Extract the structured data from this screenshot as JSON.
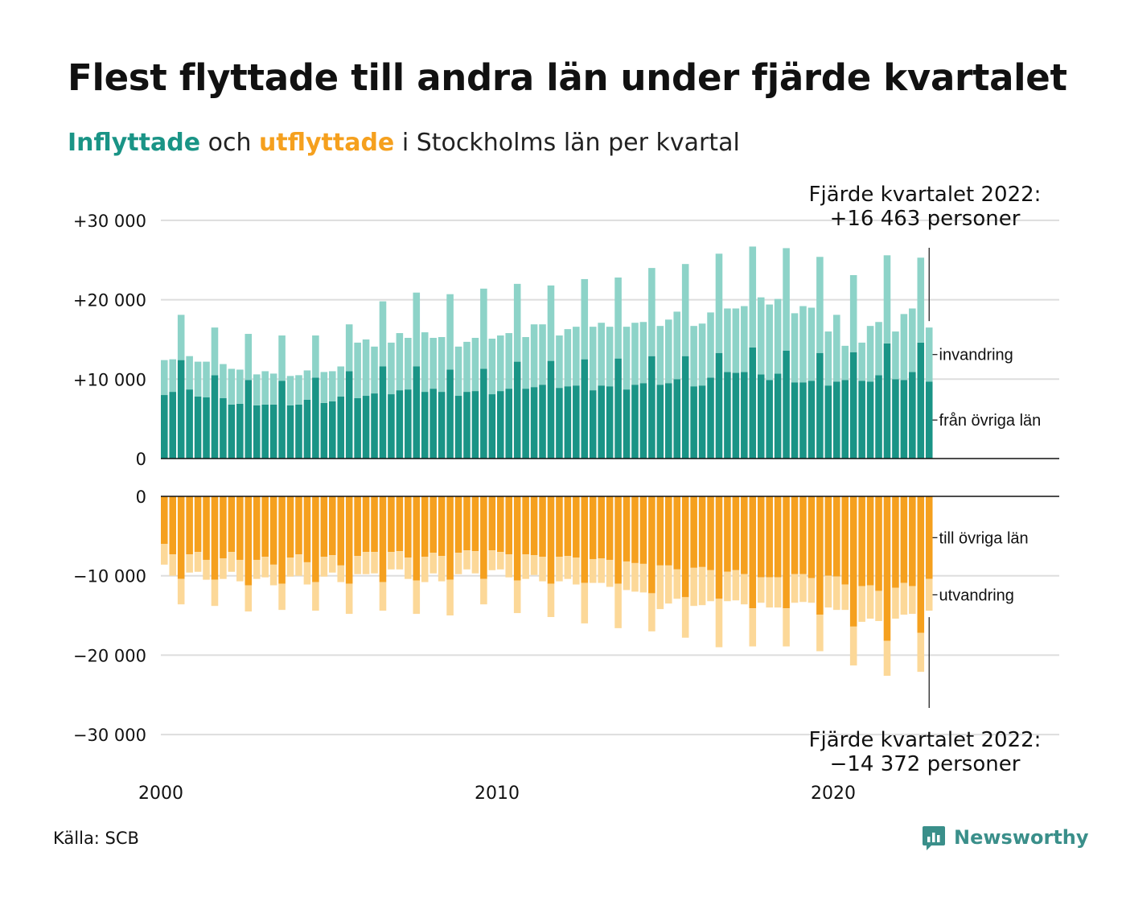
{
  "title": "Flest flyttade till andra län under fjärde kvartalet",
  "subtitle": {
    "in_word": "Inflyttade",
    "and_word": "och",
    "out_word": "utflyttade",
    "rest": "i Stockholms län per kvartal"
  },
  "source": "Källa: SCB",
  "brand": "Newsworthy",
  "colors": {
    "in_dark": "#1a9486",
    "in_light": "#8dd3c8",
    "out_dark": "#f5a01e",
    "out_light": "#fcd898",
    "grid": "#dddddd",
    "accent_in": "#1a9486",
    "accent_out": "#f5a01e",
    "logo": "#3a8f8a"
  },
  "chart_data": [
    {
      "type": "bar",
      "stacked": true,
      "panel": "inflyttade",
      "ylim": [
        0,
        30000
      ],
      "yticks": [
        {
          "value": 0,
          "label": "0"
        },
        {
          "value": 10000,
          "label": "+10 000"
        },
        {
          "value": 20000,
          "label": "+20 000"
        },
        {
          "value": 30000,
          "label": "+30 000"
        }
      ],
      "grid": true,
      "x_start_year": 2000,
      "x_end_year": 2023,
      "x_ticks": [
        {
          "value": 2000,
          "label": "2000"
        },
        {
          "value": 2010,
          "label": "2010"
        },
        {
          "value": 2020,
          "label": "2020"
        }
      ],
      "series": [
        {
          "name": "från övriga län",
          "values": [
            8000,
            8400,
            12400,
            8700,
            7800,
            7700,
            10500,
            7600,
            6800,
            6900,
            9900,
            6700,
            6800,
            6800,
            9800,
            6700,
            6800,
            7400,
            10200,
            7000,
            7200,
            7800,
            11000,
            7600,
            7900,
            8200,
            11600,
            8100,
            8600,
            8700,
            11600,
            8400,
            8800,
            8400,
            11200,
            7900,
            8400,
            8500,
            11300,
            8100,
            8500,
            8800,
            12200,
            8800,
            9000,
            9300,
            12300,
            8900,
            9100,
            9200,
            12500,
            8600,
            9200,
            9100,
            12600,
            8700,
            9300,
            9500,
            12900,
            9300,
            9500,
            10000,
            12900,
            9100,
            9200,
            10200,
            13300,
            10900,
            10800,
            10900,
            14000,
            10600,
            9900,
            10700,
            13600,
            9600,
            9600,
            9800,
            13300,
            9200,
            9700,
            9900,
            13400,
            9800,
            9700,
            10500,
            14500,
            10000,
            9900,
            10900,
            14600,
            9700
          ]
        },
        {
          "name": "invandring",
          "values": [
            4400,
            4100,
            5700,
            4200,
            4400,
            4500,
            6000,
            4300,
            4500,
            4300,
            5800,
            3900,
            4200,
            3900,
            5700,
            3700,
            3700,
            3700,
            5300,
            3900,
            3800,
            3800,
            5900,
            7000,
            7100,
            5900,
            8200,
            6500,
            7200,
            6500,
            9300,
            7500,
            6400,
            6900,
            9500,
            6200,
            6300,
            6700,
            10100,
            7000,
            7000,
            7000,
            9800,
            6500,
            7900,
            7600,
            9500,
            6600,
            7200,
            7400,
            10100,
            8000,
            7900,
            7500,
            10200,
            7900,
            7800,
            7700,
            11100,
            7400,
            8000,
            8500,
            11600,
            7600,
            7800,
            8200,
            12500,
            8000,
            8100,
            8300,
            12700,
            9700,
            9500,
            9400,
            12900,
            8700,
            9600,
            9200,
            12100,
            6800,
            8400,
            4300,
            9700,
            4800,
            7000,
            6700,
            11100,
            6000,
            8300,
            8000,
            10700,
            6800
          ]
        }
      ],
      "annotation": {
        "line1": "Fjärde kvartalet 2022:",
        "line2": "+16 463 personer",
        "quarter_index": 91,
        "value": 16463
      }
    },
    {
      "type": "bar",
      "stacked": true,
      "panel": "utflyttade",
      "ylim": [
        -30000,
        0
      ],
      "yticks": [
        {
          "value": 0,
          "label": "0"
        },
        {
          "value": -10000,
          "label": "−10 000"
        },
        {
          "value": -20000,
          "label": "−20 000"
        },
        {
          "value": -30000,
          "label": "−30 000"
        }
      ],
      "grid": true,
      "series": [
        {
          "name": "till övriga län",
          "values": [
            -6000,
            -7300,
            -10400,
            -7300,
            -7000,
            -8000,
            -10500,
            -7800,
            -7000,
            -8000,
            -11200,
            -8000,
            -7600,
            -8600,
            -11000,
            -7700,
            -7300,
            -8300,
            -10800,
            -7600,
            -7400,
            -8700,
            -11000,
            -7500,
            -7000,
            -7000,
            -10800,
            -7000,
            -6900,
            -7700,
            -10600,
            -7600,
            -7100,
            -7500,
            -10500,
            -7100,
            -6800,
            -6900,
            -10400,
            -6800,
            -7000,
            -7300,
            -10600,
            -7300,
            -7400,
            -7600,
            -11000,
            -7600,
            -7500,
            -7700,
            -10900,
            -7900,
            -7800,
            -8000,
            -11000,
            -8200,
            -8400,
            -8500,
            -12200,
            -8700,
            -8700,
            -9200,
            -12700,
            -9000,
            -8900,
            -9300,
            -12900,
            -9500,
            -9300,
            -9800,
            -14100,
            -10200,
            -10200,
            -10200,
            -14100,
            -9800,
            -9800,
            -10300,
            -14900,
            -10000,
            -10100,
            -11100,
            -16400,
            -11300,
            -11200,
            -11900,
            -18200,
            -11500,
            -10900,
            -11300,
            -17200,
            -10400
          ]
        },
        {
          "name": "utvandring",
          "values": [
            -2600,
            -2700,
            -3200,
            -2300,
            -2500,
            -2500,
            -3300,
            -2600,
            -2500,
            -2700,
            -3300,
            -2400,
            -2600,
            -2600,
            -3300,
            -2400,
            -2700,
            -2800,
            -3600,
            -2500,
            -2200,
            -2100,
            -3800,
            -2300,
            -2800,
            -2700,
            -3600,
            -2200,
            -2300,
            -2700,
            -4200,
            -3200,
            -2600,
            -3200,
            -4500,
            -2700,
            -2400,
            -2800,
            -3200,
            -2500,
            -2200,
            -2900,
            -4100,
            -3100,
            -2500,
            -3100,
            -4200,
            -3100,
            -2900,
            -3400,
            -5100,
            -3000,
            -3100,
            -3400,
            -5600,
            -3600,
            -3600,
            -3600,
            -4800,
            -5500,
            -4800,
            -3700,
            -5100,
            -4800,
            -4800,
            -3900,
            -6100,
            -3700,
            -3800,
            -3800,
            -4800,
            -3200,
            -3800,
            -3800,
            -4800,
            -3600,
            -3500,
            -3100,
            -4600,
            -4000,
            -4200,
            -3200,
            -4900,
            -4500,
            -4200,
            -3800,
            -4400,
            -3900,
            -4000,
            -3500,
            -4900,
            -4000
          ]
        }
      ],
      "annotation": {
        "line1": "Fjärde kvartalet 2022:",
        "line2": "−14 372 personer",
        "quarter_index": 91,
        "value": -14372
      }
    }
  ]
}
